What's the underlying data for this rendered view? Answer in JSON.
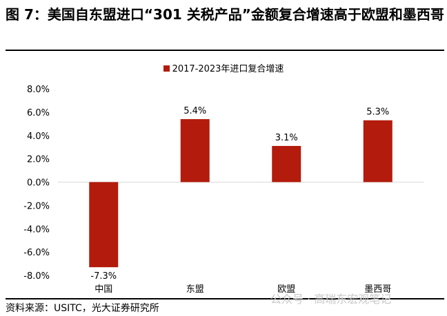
{
  "title": "图 7：美国自东盟进口“301 关税产品”金额复合增速高于欧盟和墨西哥",
  "source": "资料来源：USITC，光大证券研究所",
  "watermark": "公众号 · 高瑞东宏观笔记",
  "chart_data": {
    "type": "bar",
    "categories": [
      "中国",
      "东盟",
      "欧盟",
      "墨西哥"
    ],
    "series": [
      {
        "name": "2017-2023年进口复合增速",
        "values": [
          -7.3,
          5.4,
          3.1,
          5.3
        ],
        "color": "#b31b0c"
      }
    ],
    "data_labels": [
      "-7.3%",
      "5.4%",
      "3.1%",
      "5.3%"
    ],
    "ylim": [
      -8,
      8
    ],
    "yticks": [
      8,
      6,
      4,
      2,
      0,
      -2,
      -4,
      -6,
      -8
    ],
    "ytick_labels": [
      "8.0%",
      "6.0%",
      "4.0%",
      "2.0%",
      "0.0%",
      "-2.0%",
      "-4.0%",
      "-6.0%",
      "-8.0%"
    ],
    "legend": "top",
    "grid": false
  }
}
